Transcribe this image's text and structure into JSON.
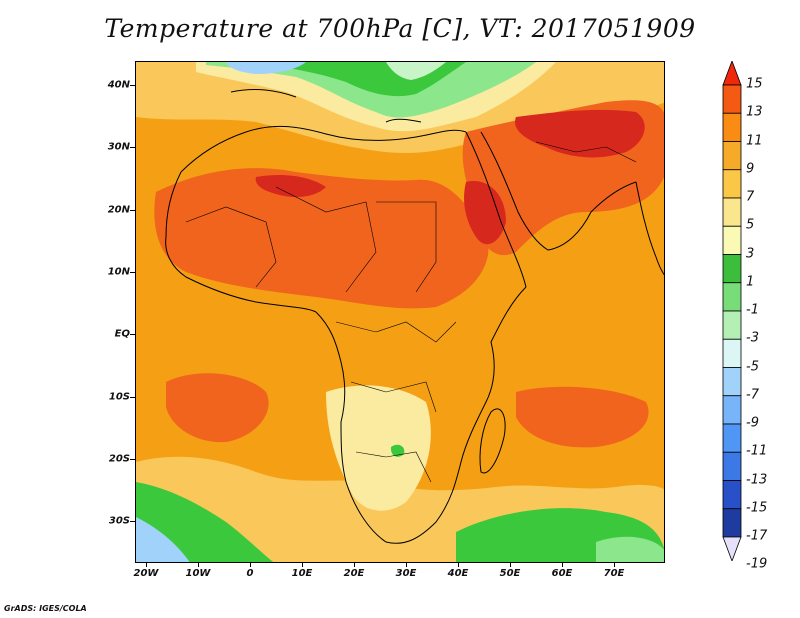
{
  "title": "Temperature at 700hPa [C], VT: 2017051909",
  "credit": "GrADS: IGES/COLA",
  "map": {
    "lat_labels": [
      "40N",
      "30N",
      "20N",
      "10N",
      "EQ",
      "10S",
      "20S",
      "30S"
    ],
    "lon_labels": [
      "20W",
      "10W",
      "0",
      "10E",
      "20E",
      "30E",
      "40E",
      "50E",
      "60E",
      "70E"
    ]
  },
  "colorbar": {
    "levels": [
      "15",
      "13",
      "11",
      "9",
      "7",
      "5",
      "3",
      "1",
      "-1",
      "-3",
      "-5",
      "-7",
      "-9",
      "-11",
      "-13",
      "-15",
      "-17",
      "-19"
    ],
    "colors": [
      "#f0280a",
      "#f55a14",
      "#fa8c14",
      "#f5aa28",
      "#fac846",
      "#fae68c",
      "#fafab4",
      "#3cbe3c",
      "#78dc78",
      "#b4f0b4",
      "#dcf5f5",
      "#a0d2fa",
      "#78b4fa",
      "#5096f5",
      "#3c78e6",
      "#2850c8",
      "#1e3ca0",
      "#0a1464"
    ]
  },
  "palette": {
    "hot_dark": "#d7281e",
    "hot": "#f0641e",
    "warm": "#f58c1e",
    "orange": "#f5a014",
    "light_orange": "#fac85a",
    "pale_yellow": "#faeba0",
    "green": "#3cc83c",
    "light_green": "#8ce68c",
    "pale_green": "#c8f5c8",
    "light_blue": "#a0d2fa",
    "land_lines": "#000000"
  }
}
